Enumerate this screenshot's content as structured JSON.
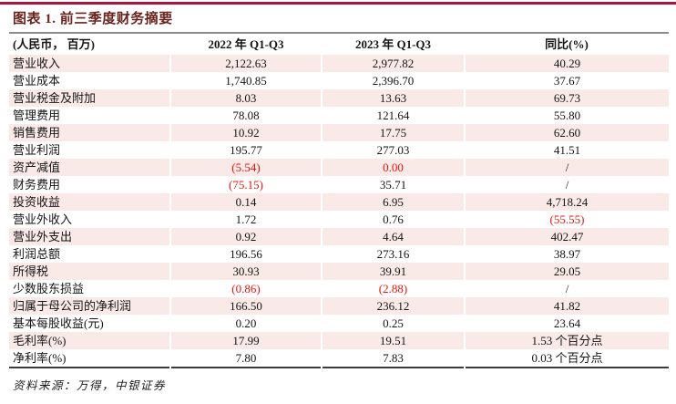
{
  "title": "图表 1. 前三季度财务摘要",
  "footer": "资料来源：万得，中银证券",
  "colors": {
    "accent": "#ab143c",
    "title": "#69231e",
    "stripe": "#f9e9e7",
    "neg": "#e8170e"
  },
  "table": {
    "headers": [
      "(人民币， 百万)",
      "2022 年 Q1-Q3",
      "2023 年 Q1-Q3",
      "同比(%)"
    ],
    "rows": [
      {
        "cells": [
          {
            "t": "营业收入"
          },
          {
            "t": "2,122.63"
          },
          {
            "t": "2,977.82"
          },
          {
            "t": "40.29"
          }
        ]
      },
      {
        "cells": [
          {
            "t": "营业成本"
          },
          {
            "t": "1,740.85"
          },
          {
            "t": "2,396.70"
          },
          {
            "t": "37.67"
          }
        ]
      },
      {
        "cells": [
          {
            "t": "营业税金及附加"
          },
          {
            "t": "8.03"
          },
          {
            "t": "13.63"
          },
          {
            "t": "69.73"
          }
        ]
      },
      {
        "cells": [
          {
            "t": "管理费用"
          },
          {
            "t": "78.08"
          },
          {
            "t": "121.64"
          },
          {
            "t": "55.80"
          }
        ]
      },
      {
        "cells": [
          {
            "t": "销售费用"
          },
          {
            "t": "10.92"
          },
          {
            "t": "17.75"
          },
          {
            "t": "62.60"
          }
        ]
      },
      {
        "cells": [
          {
            "t": "营业利润"
          },
          {
            "t": "195.77"
          },
          {
            "t": "277.03"
          },
          {
            "t": "41.51"
          }
        ]
      },
      {
        "cells": [
          {
            "t": "资产减值"
          },
          {
            "t": "(5.54)",
            "red": true
          },
          {
            "t": "0.00",
            "red": true
          },
          {
            "t": "/"
          }
        ]
      },
      {
        "cells": [
          {
            "t": "财务费用"
          },
          {
            "t": "(75.15)",
            "red": true
          },
          {
            "t": "35.71"
          },
          {
            "t": "/"
          }
        ]
      },
      {
        "cells": [
          {
            "t": "投资收益"
          },
          {
            "t": "0.14"
          },
          {
            "t": "6.95"
          },
          {
            "t": "4,718.24"
          }
        ]
      },
      {
        "cells": [
          {
            "t": "营业外收入"
          },
          {
            "t": "1.72"
          },
          {
            "t": "0.76"
          },
          {
            "t": "(55.55)",
            "red": true
          }
        ]
      },
      {
        "cells": [
          {
            "t": "营业外支出"
          },
          {
            "t": "0.92"
          },
          {
            "t": "4.64"
          },
          {
            "t": "402.47"
          }
        ]
      },
      {
        "cells": [
          {
            "t": "利润总额"
          },
          {
            "t": "196.56"
          },
          {
            "t": "273.16"
          },
          {
            "t": "38.97"
          }
        ]
      },
      {
        "cells": [
          {
            "t": "所得税"
          },
          {
            "t": "30.93"
          },
          {
            "t": "39.91"
          },
          {
            "t": "29.05"
          }
        ]
      },
      {
        "cells": [
          {
            "t": "少数股东损益"
          },
          {
            "t": "(0.86)",
            "red": true
          },
          {
            "t": "(2.88)",
            "red": true
          },
          {
            "t": "/"
          }
        ]
      },
      {
        "cells": [
          {
            "t": "归属于母公司的净利润"
          },
          {
            "t": "166.50"
          },
          {
            "t": "236.12"
          },
          {
            "t": "41.82"
          }
        ]
      },
      {
        "cells": [
          {
            "t": "基本每股收益(元)"
          },
          {
            "t": "0.20"
          },
          {
            "t": "0.25"
          },
          {
            "t": "23.64"
          }
        ]
      },
      {
        "cells": [
          {
            "t": "毛利率(%)"
          },
          {
            "t": "17.99"
          },
          {
            "t": "19.51"
          },
          {
            "t": "1.53 个百分点"
          }
        ]
      },
      {
        "cells": [
          {
            "t": "净利率(%)"
          },
          {
            "t": "7.80"
          },
          {
            "t": "7.83"
          },
          {
            "t": "0.03 个百分点"
          }
        ]
      }
    ]
  }
}
